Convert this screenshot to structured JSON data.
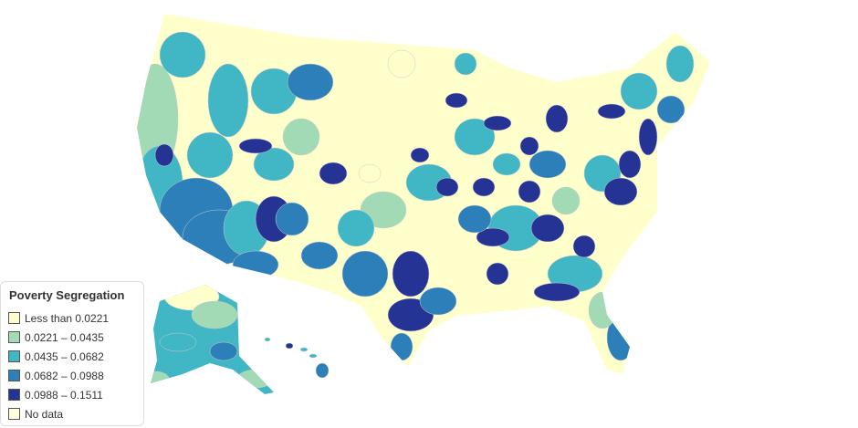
{
  "legend": {
    "title": "Poverty Segregation",
    "items": [
      {
        "label": "Less than 0.0221",
        "color": "#ffffcc"
      },
      {
        "label": "0.0221 – 0.0435",
        "color": "#a1dab4"
      },
      {
        "label": "0.0435 – 0.0682",
        "color": "#41b6c4"
      },
      {
        "label": "0.0682 – 0.0988",
        "color": "#2c7fb8"
      },
      {
        "label": "0.0988 – 0.1511",
        "color": "#253494"
      },
      {
        "label": "No data",
        "color": "#ffffe0"
      }
    ]
  }
}
